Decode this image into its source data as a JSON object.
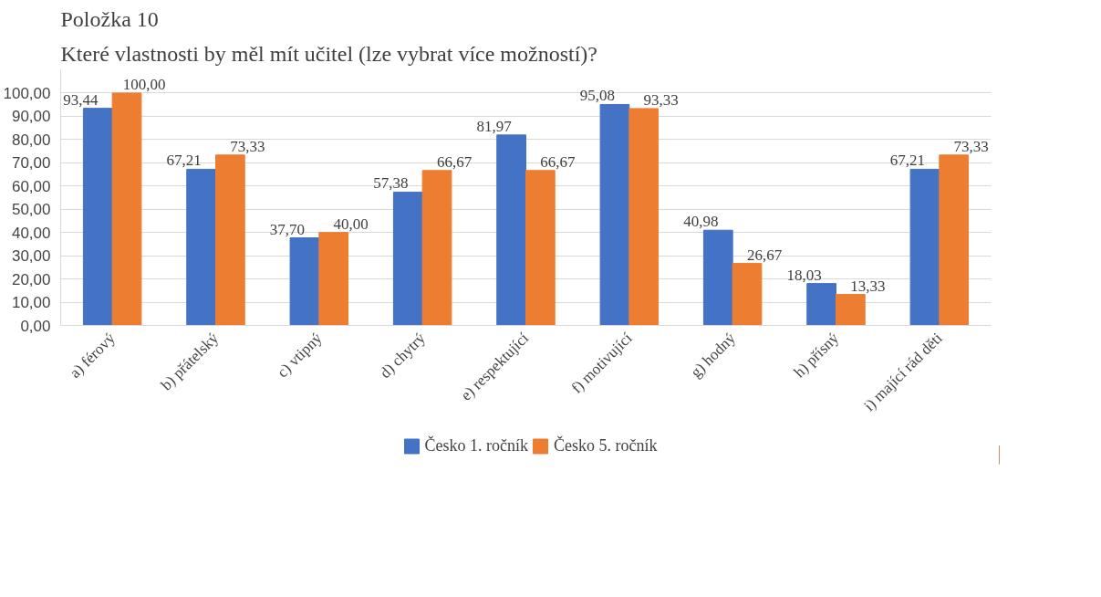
{
  "chart_data": {
    "type": "bar",
    "title": "Položka 10",
    "subtitle": "Které vlastnosti by měl mít učitel (lze vybrat více možností)?",
    "categories": [
      "a) férový",
      "b) přátelský",
      "c) vtipný",
      "d) chytrý",
      "e) respektující",
      "f) motivující",
      "g) hodný",
      "h) přísný",
      "i) mající rád děti"
    ],
    "series": [
      {
        "name": "Česko 1. ročník",
        "color": "#4472c4",
        "values": [
          93.44,
          67.21,
          37.7,
          57.38,
          81.97,
          95.08,
          40.98,
          18.03,
          67.21
        ],
        "value_labels": [
          "93,44",
          "67,21",
          "37,70",
          "57,38",
          "81,97",
          "95,08",
          "40,98",
          "18,03",
          "67,21"
        ]
      },
      {
        "name": "Česko 5. ročník",
        "color": "#ed7d31",
        "values": [
          100.0,
          73.33,
          40.0,
          66.67,
          66.67,
          93.33,
          26.67,
          13.33,
          73.33
        ],
        "value_labels": [
          "100,00",
          "73,33",
          "40,00",
          "66,67",
          "66,67",
          "93,33",
          "26,67",
          "13,33",
          "73,33"
        ]
      }
    ],
    "ylim": [
      0,
      110
    ],
    "yticks": [
      {
        "value": 0,
        "label": "0,00"
      },
      {
        "value": 10,
        "label": "10,00"
      },
      {
        "value": 20,
        "label": "20,00"
      },
      {
        "value": 30,
        "label": "30,00"
      },
      {
        "value": 40,
        "label": "40,00"
      },
      {
        "value": 50,
        "label": "50,00"
      },
      {
        "value": 60,
        "label": "60,00"
      },
      {
        "value": 70,
        "label": "70,00"
      },
      {
        "value": 80,
        "label": "80,00"
      },
      {
        "value": 90,
        "label": "90,00"
      },
      {
        "value": 100,
        "label": "100,00"
      }
    ],
    "grid": "y",
    "legend": "bottom"
  }
}
